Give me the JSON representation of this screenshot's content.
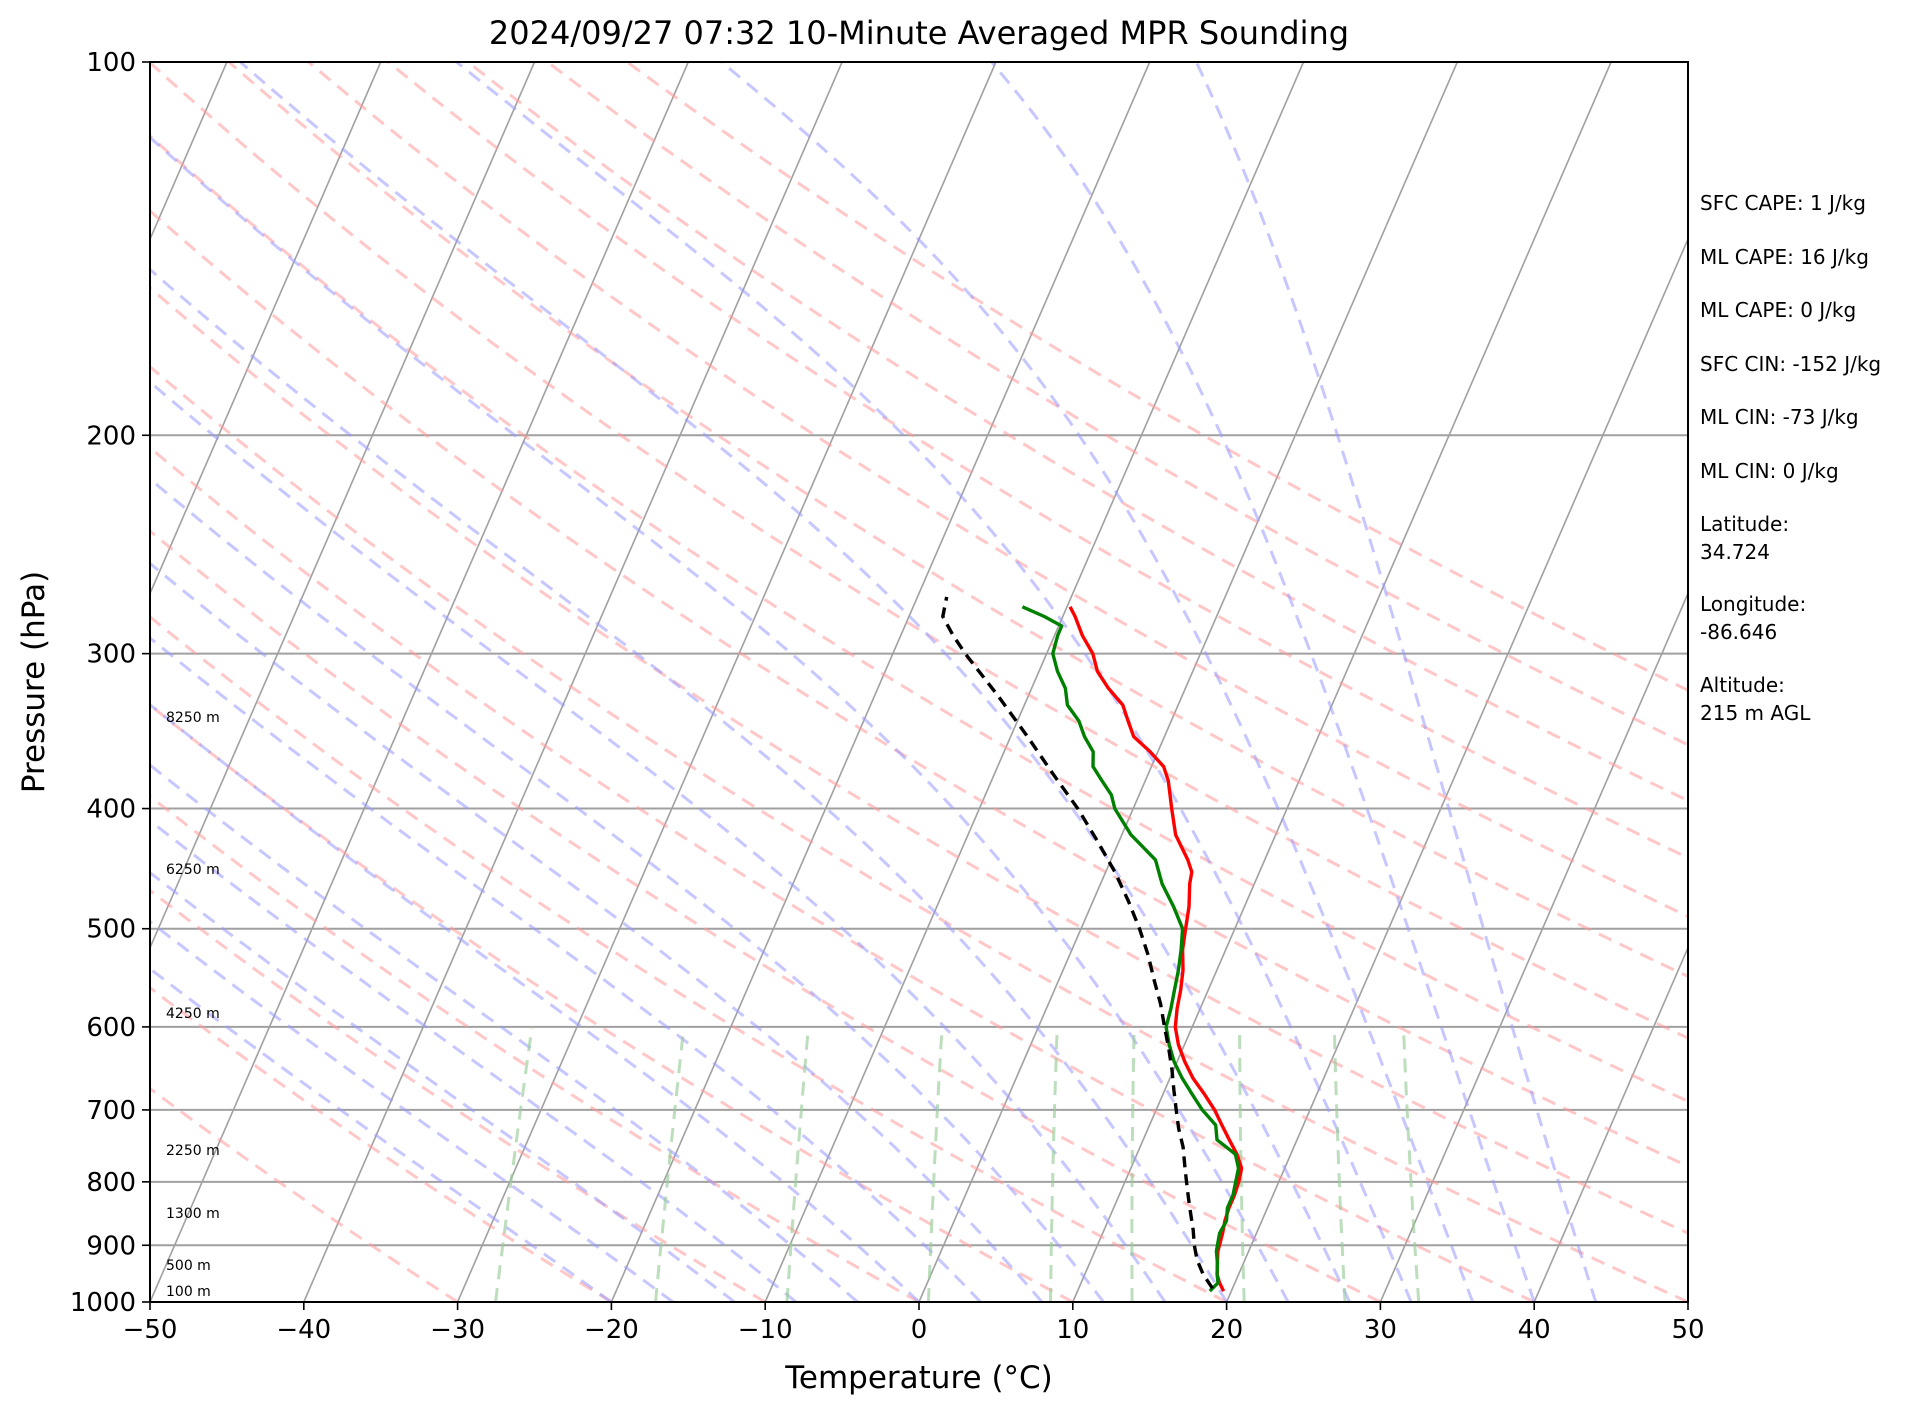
{
  "chart_data": {
    "type": "skew-t",
    "title": "2024/09/27 07:32 10-Minute Averaged MPR Sounding",
    "xlabel": "Temperature (°C)",
    "ylabel": "Pressure (hPa)",
    "xlim": [
      -50,
      50
    ],
    "ylim": [
      1000,
      100
    ],
    "y_scale": "log",
    "x_ticks": [
      -50,
      -40,
      -30,
      -20,
      -10,
      0,
      10,
      20,
      30,
      40,
      50
    ],
    "x_tick_labels": [
      "−50",
      "−40",
      "−30",
      "−20",
      "−10",
      "0",
      "10",
      "20",
      "30",
      "40",
      "50"
    ],
    "y_ticks": [
      1000,
      900,
      800,
      700,
      600,
      500,
      400,
      300,
      200,
      100
    ],
    "y_tick_labels": [
      "1000",
      "900",
      "800",
      "700",
      "600",
      "500",
      "400",
      "300",
      "200",
      "100"
    ],
    "grid": true,
    "colors": {
      "temperature": "#ff0000",
      "dewpoint": "#008000",
      "parcel": "#000000",
      "dry_adiabats": "#ff9999",
      "moist_adiabats": "#9999ff",
      "mixing_ratio": "#99cc99",
      "isotherms": "#a0a0a0",
      "isobars": "#a0a0a0"
    },
    "series": [
      {
        "key": "temperature",
        "pressure": [
          980,
          965,
          950,
          930,
          910,
          880,
          860,
          840,
          820,
          800,
          780,
          760,
          740,
          720,
          700,
          680,
          660,
          640,
          620,
          600,
          580,
          560,
          540,
          520,
          500,
          480,
          460,
          450,
          440,
          420,
          400,
          380,
          370,
          360,
          350,
          340,
          330,
          320,
          310,
          300,
          290,
          280,
          275
        ],
        "temperature": [
          19.5,
          19.0,
          18.6,
          18.3,
          18.0,
          17.8,
          17.6,
          17.5,
          17.5,
          17.4,
          17.2,
          16.5,
          15.6,
          14.7,
          13.8,
          12.7,
          11.5,
          10.5,
          9.6,
          8.9,
          8.5,
          8.2,
          7.8,
          7.2,
          6.8,
          6.4,
          5.8,
          5.6,
          5.0,
          3.5,
          2.5,
          1.5,
          0.8,
          -0.5,
          -2.0,
          -2.8,
          -3.6,
          -5.0,
          -6.2,
          -7.0,
          -8.2,
          -9.2,
          -9.8
        ]
      },
      {
        "key": "dewpoint",
        "pressure": [
          980,
          965,
          950,
          930,
          910,
          880,
          860,
          840,
          820,
          800,
          780,
          760,
          740,
          720,
          700,
          680,
          660,
          640,
          620,
          600,
          580,
          560,
          540,
          520,
          500,
          480,
          460,
          440,
          420,
          400,
          390,
          380,
          370,
          360,
          350,
          340,
          330,
          320,
          310,
          300,
          290,
          285,
          280,
          275
        ],
        "temperature": [
          18.6,
          18.9,
          18.6,
          18.3,
          17.9,
          17.6,
          17.7,
          17.4,
          17.4,
          17.2,
          17.0,
          16.4,
          14.8,
          14.3,
          13.0,
          11.9,
          10.8,
          9.8,
          9.0,
          8.3,
          8.1,
          7.8,
          7.5,
          7.1,
          6.6,
          5.4,
          4.0,
          2.9,
          0.6,
          -1.2,
          -1.8,
          -2.8,
          -3.8,
          -4.2,
          -5.2,
          -6.0,
          -7.2,
          -7.8,
          -8.8,
          -9.6,
          -9.8,
          -9.8,
          -11.2,
          -12.9
        ]
      },
      {
        "key": "parcel",
        "pressure": [
          975,
          950,
          925,
          900,
          875,
          850,
          825,
          800,
          775,
          750,
          725,
          700,
          675,
          650,
          625,
          600,
          575,
          550,
          525,
          500,
          475,
          450,
          425,
          400,
          375,
          350,
          325,
          300,
          290,
          280,
          270
        ],
        "temperature": [
          18.7,
          17.7,
          16.9,
          16.3,
          15.8,
          15.2,
          14.6,
          14.0,
          13.4,
          12.8,
          12.0,
          11.3,
          10.6,
          9.9,
          9.1,
          8.2,
          7.3,
          6.2,
          5.1,
          3.8,
          2.3,
          0.6,
          -1.4,
          -3.6,
          -6.2,
          -8.9,
          -11.9,
          -15.3,
          -16.6,
          -17.8,
          -18.1
        ]
      }
    ],
    "height_labels": [
      "8250 m",
      "6250 m",
      "4250 m",
      "2250 m",
      "1300 m",
      "500 m",
      "100 m"
    ],
    "info": [
      "SFC CAPE: 1 J/kg",
      "ML CAPE: 16 J/kg",
      "ML CAPE: 0 J/kg",
      "SFC CIN: -152 J/kg",
      "ML CIN: -73 J/kg",
      "ML CIN: 0 J/kg"
    ],
    "location": {
      "latitude_label": "Latitude:",
      "latitude": "34.724",
      "longitude_label": "Longitude:",
      "longitude": "-86.646",
      "altitude_label": "Altitude:",
      "altitude": "215 m AGL"
    }
  }
}
